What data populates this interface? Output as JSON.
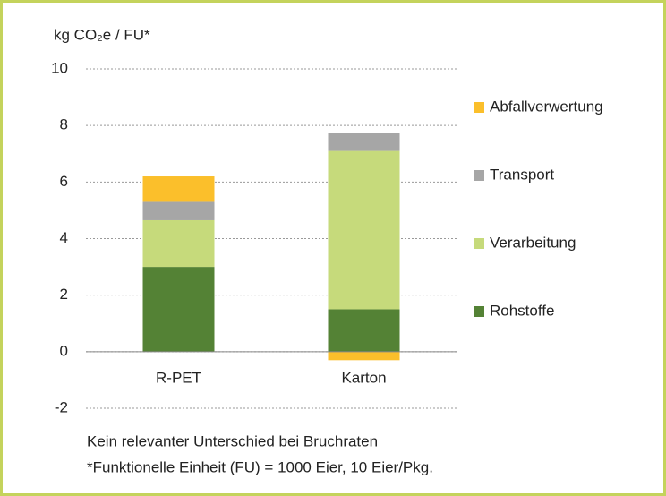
{
  "chart_data": {
    "type": "stacked_bar",
    "y_label": "kg CO₂e / FU*",
    "categories": [
      "R-PET",
      "Karton"
    ],
    "series": [
      {
        "name": "Rohstoffe",
        "color": "#548235",
        "values": [
          3.0,
          1.5
        ]
      },
      {
        "name": "Verarbeitung",
        "color": "#c6da7b",
        "values": [
          1.65,
          5.6
        ]
      },
      {
        "name": "Transport",
        "color": "#a6a6a6",
        "values": [
          0.65,
          0.65
        ]
      },
      {
        "name": "Abfallverwertung",
        "color": "#fbbf2b",
        "values": [
          0.9,
          -0.3
        ]
      }
    ],
    "ylim": [
      -2,
      10
    ],
    "yticks": [
      -2,
      0,
      2,
      4,
      6,
      8,
      10
    ],
    "grid": true,
    "legend": "right",
    "notes": [
      "Kein relevanter Unterschied bei Bruchraten",
      "*Funktionelle Einheit (FU) = 1000 Eier, 10 Eier/Pkg."
    ]
  }
}
